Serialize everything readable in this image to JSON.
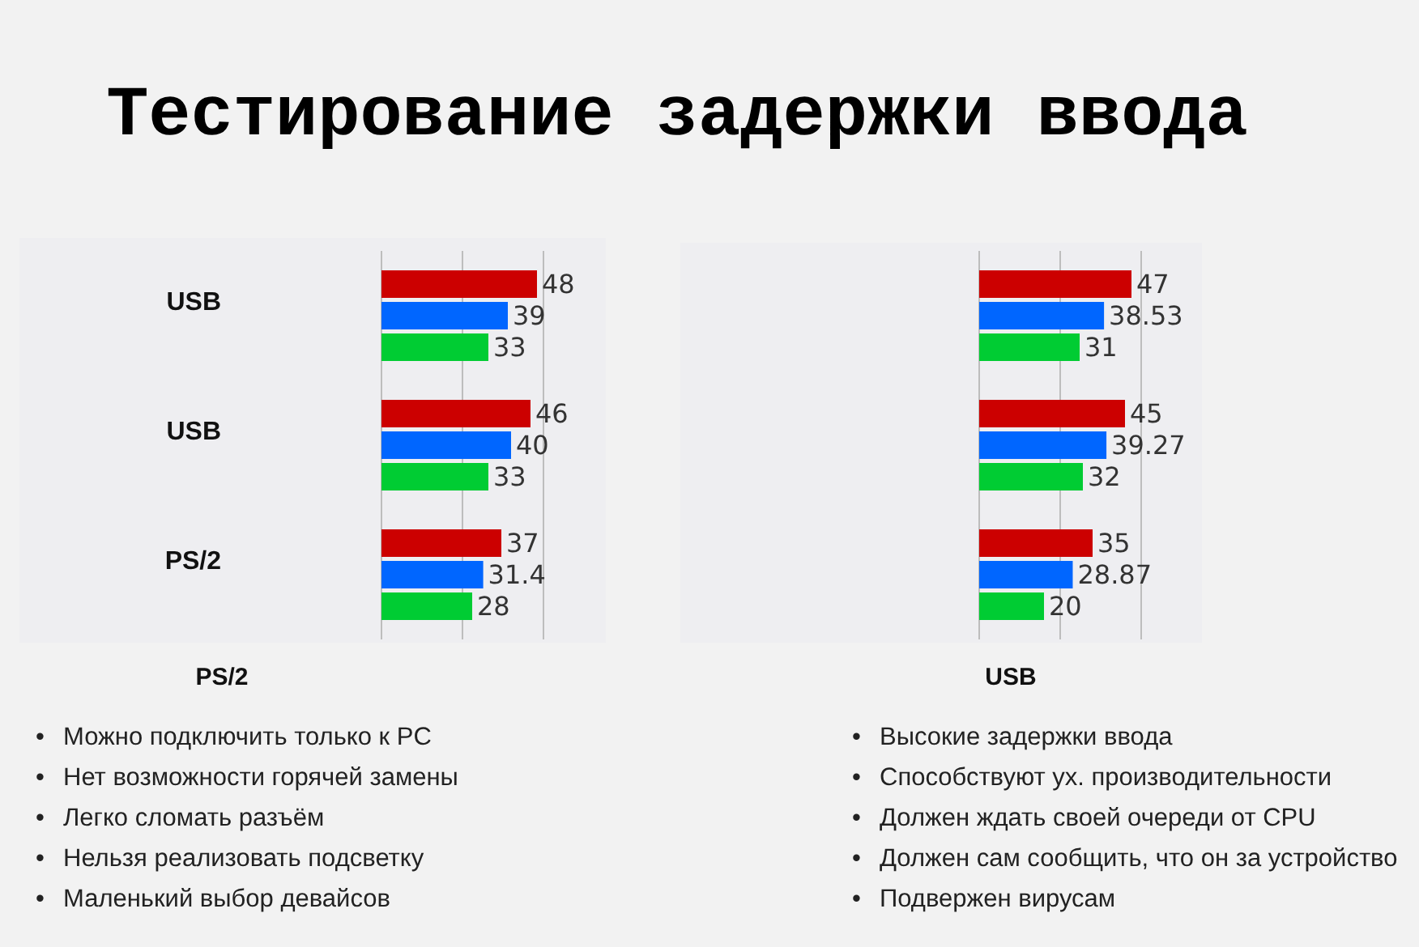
{
  "chart_data": [
    {
      "type": "bar",
      "orientation": "horizontal",
      "title": "Тестирование задержки ввода",
      "categories": [
        "USB",
        "USB",
        "PS/2"
      ],
      "series": [
        {
          "color": "#cc0000",
          "values": [
            48,
            46,
            37
          ]
        },
        {
          "color": "#0066ff",
          "values": [
            39,
            40,
            31.4
          ]
        },
        {
          "color": "#00cc33",
          "values": [
            33,
            33,
            28
          ]
        }
      ],
      "xlim": [
        0,
        50
      ],
      "xticks": [
        {
          "value": 0,
          "label": null
        },
        {
          "value": 25,
          "label": null
        },
        {
          "value": 50,
          "label": null
        }
      ],
      "grid": "x",
      "tick_labels": "y",
      "data_labels": true,
      "annotations": [
        "PS/2",
        "• Можно подключить только к PC",
        "• Нет возможности горячей замены",
        "• Легко сломать разъём",
        "• Нельзя реализовать подсветку",
        "• Маленький выбор девайсов"
      ]
    },
    {
      "type": "bar",
      "orientation": "horizontal",
      "categories": [
        null,
        null,
        null
      ],
      "series": [
        {
          "color": "#cc0000",
          "values": [
            47,
            45,
            35
          ]
        },
        {
          "color": "#0066ff",
          "values": [
            38.53,
            39.27,
            28.87
          ]
        },
        {
          "color": "#00cc33",
          "values": [
            31,
            32,
            20
          ]
        }
      ],
      "xlim": [
        0,
        50
      ],
      "xticks": [
        {
          "value": 0,
          "label": null
        },
        {
          "value": 25,
          "label": null
        },
        {
          "value": 50,
          "label": null
        }
      ],
      "grid": "x",
      "tick_labels": false,
      "data_labels": true,
      "annotations": [
        "USB",
        "• Высокие задержки ввода",
        "• Способствуют ух. производительности",
        "• Должен ждать своей очереди от CPU",
        "• Должен сам сообщить, что он за устройство",
        "• Подвержен вирусам"
      ]
    }
  ]
}
